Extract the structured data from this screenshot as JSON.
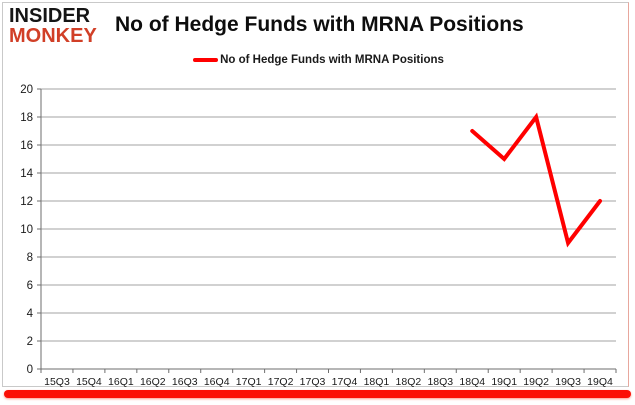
{
  "logo": {
    "line1": "INSIDER",
    "line2": "MONKEY"
  },
  "header": {
    "title": "No of Hedge Funds with MRNA Positions"
  },
  "legend": {
    "label": "No of Hedge Funds with MRNA Positions"
  },
  "colors": {
    "line": "#ff0000",
    "grid": "#a3a3a3",
    "axis": "#6e6e6e",
    "tick_text": "#1a1a1a",
    "logo_black": "#151515",
    "logo_accent": "#d13f27",
    "bottom_bar": "#fb0f06",
    "background": "#ffffff"
  },
  "chart_data": {
    "type": "line",
    "title": "No of Hedge Funds with MRNA Positions",
    "categories": [
      "15Q3",
      "15Q4",
      "16Q1",
      "16Q2",
      "16Q3",
      "16Q4",
      "17Q1",
      "17Q2",
      "17Q3",
      "17Q4",
      "18Q1",
      "18Q2",
      "18Q3",
      "18Q4",
      "19Q1",
      "19Q2",
      "19Q3",
      "19Q4"
    ],
    "series": [
      {
        "name": "No of Hedge Funds with MRNA Positions",
        "color": "#ff0000",
        "values": [
          null,
          null,
          null,
          null,
          null,
          null,
          null,
          null,
          null,
          null,
          null,
          null,
          null,
          17,
          15,
          18,
          9,
          12
        ]
      }
    ],
    "xlabel": "",
    "ylabel": "",
    "ylim": [
      0,
      20
    ],
    "ytick_step": 2,
    "grid": true,
    "legend_position": "top-center"
  }
}
